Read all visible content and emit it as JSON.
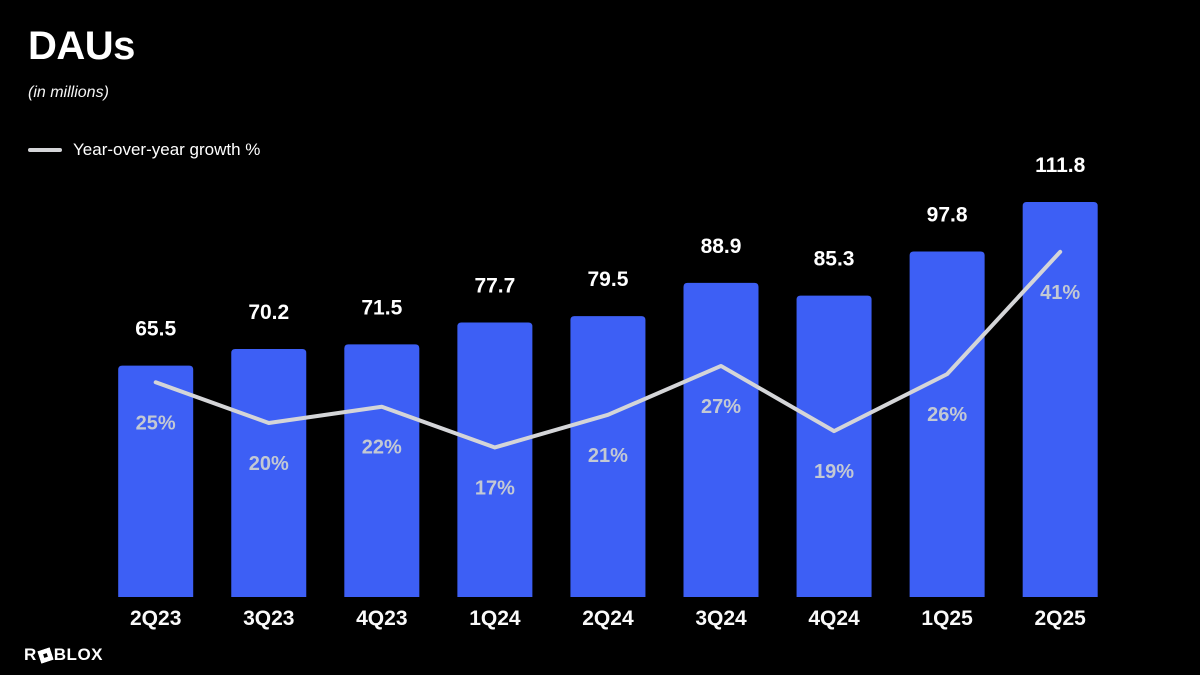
{
  "header": {
    "title": "DAUs",
    "subtitle": "(in millions)"
  },
  "legend": {
    "label": "Year-over-year growth %",
    "line_color": "#D4D5D8"
  },
  "footer": {
    "logo_prefix": "R",
    "logo_suffix": "BLOX"
  },
  "colors": {
    "background": "#000000",
    "bar": "#3D5FF5",
    "line": "#D4D5D8",
    "value_label": "#FFFFFF",
    "pct_label": "#C3C9D4"
  },
  "chart_data": {
    "type": "bar",
    "title": "DAUs",
    "subtitle": "(in millions)",
    "categories": [
      "2Q23",
      "3Q23",
      "4Q23",
      "1Q24",
      "2Q24",
      "3Q24",
      "4Q24",
      "1Q25",
      "2Q25"
    ],
    "series": [
      {
        "name": "DAUs (in millions)",
        "type": "bar",
        "values": [
          65.5,
          70.2,
          71.5,
          77.7,
          79.5,
          88.9,
          85.3,
          97.8,
          111.8
        ],
        "color": "#3D5FF5",
        "label_color": "#FFFFFF"
      },
      {
        "name": "Year-over-year growth %",
        "type": "line",
        "values": [
          25,
          20,
          22,
          17,
          21,
          27,
          19,
          26,
          41
        ],
        "unit": "%",
        "color": "#D4D5D8",
        "label_color": "#C3C9D4"
      }
    ],
    "xlabel": "",
    "ylabel": "",
    "y_axis_visible": false,
    "grid": false,
    "legend_position": "top-left",
    "background": "#000000"
  }
}
